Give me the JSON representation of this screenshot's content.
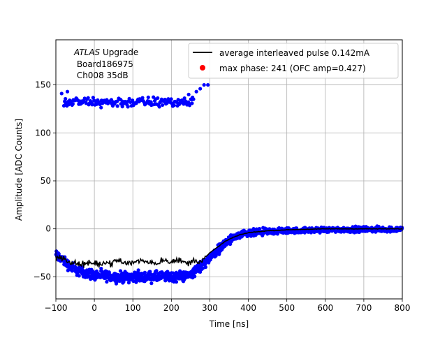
{
  "chart_data": {
    "type": "scatter",
    "xlabel": "Time [ns]",
    "ylabel": "Amplitude [ADC Counts]",
    "xlim": [
      -100,
      800
    ],
    "ylim": [
      -73,
      197
    ],
    "x_ticks": [
      -100,
      0,
      100,
      200,
      300,
      400,
      500,
      600,
      700,
      800
    ],
    "x_tick_labels": [
      "−100",
      "0",
      "100",
      "200",
      "300",
      "400",
      "500",
      "600",
      "700",
      "800"
    ],
    "y_ticks": [
      -50,
      0,
      50,
      100,
      150
    ],
    "y_tick_labels": [
      "−50",
      "0",
      "50",
      "100",
      "150"
    ],
    "grid": true,
    "legend_position": "upper-right",
    "annotation": {
      "line1_italic": "ATLAS",
      "line1_rest": " Upgrade",
      "line2": " Board186975",
      "line3": " Ch008 35dB"
    },
    "series": [
      {
        "name": "average interleaved pulse 0.142mA",
        "kind": "line",
        "color": "#000000",
        "points": [
          [
            -100,
            -28
          ],
          [
            -80,
            -32
          ],
          [
            -60,
            -35
          ],
          [
            -40,
            -37
          ],
          [
            -20,
            -36
          ],
          [
            0,
            -37
          ],
          [
            20,
            -35
          ],
          [
            40,
            -36
          ],
          [
            60,
            -33
          ],
          [
            80,
            -36
          ],
          [
            100,
            -35
          ],
          [
            120,
            -33
          ],
          [
            140,
            -34
          ],
          [
            160,
            -36
          ],
          [
            180,
            -32
          ],
          [
            200,
            -34
          ],
          [
            220,
            -33
          ],
          [
            240,
            -36
          ],
          [
            260,
            -33
          ],
          [
            280,
            -33
          ],
          [
            300,
            -25
          ],
          [
            320,
            -19
          ],
          [
            340,
            -13
          ],
          [
            360,
            -9
          ],
          [
            380,
            -6
          ],
          [
            400,
            -4
          ],
          [
            450,
            -2
          ],
          [
            500,
            -1
          ],
          [
            550,
            -0.5
          ],
          [
            600,
            0
          ],
          [
            650,
            0
          ],
          [
            700,
            0
          ],
          [
            750,
            0
          ],
          [
            800,
            0
          ]
        ]
      },
      {
        "name": "max phase: 241 (OFC amp=0.427)",
        "kind": "scatter",
        "color": "#ff0000"
      },
      {
        "name": "",
        "kind": "scatter-band",
        "color": "#0000ff",
        "upper_cluster": {
          "x_range": [
            -80,
            258
          ],
          "y_center": 132,
          "y_spread": 5,
          "outliers": [
            [
              -85,
              141
            ],
            [
              -70,
              143
            ],
            [
              245,
              140
            ],
            [
              255,
              137
            ],
            [
              265,
              143
            ],
            [
              275,
              146
            ],
            [
              285,
              150
            ],
            [
              295,
              150
            ]
          ]
        },
        "lower_band": [
          [
            -100,
            -27
          ],
          [
            -80,
            -33
          ],
          [
            -60,
            -40
          ],
          [
            -40,
            -44
          ],
          [
            -20,
            -46
          ],
          [
            0,
            -48
          ],
          [
            50,
            -50
          ],
          [
            100,
            -50
          ],
          [
            150,
            -50
          ],
          [
            200,
            -50
          ],
          [
            240,
            -49
          ],
          [
            260,
            -45
          ],
          [
            280,
            -38
          ],
          [
            300,
            -30
          ],
          [
            320,
            -22
          ],
          [
            340,
            -15
          ],
          [
            360,
            -10
          ],
          [
            380,
            -7
          ],
          [
            400,
            -5
          ],
          [
            450,
            -3
          ],
          [
            500,
            -2
          ],
          [
            550,
            -1.5
          ],
          [
            600,
            -1
          ],
          [
            700,
            -0.5
          ],
          [
            800,
            -0.5
          ]
        ],
        "band_spread": 4
      }
    ]
  }
}
